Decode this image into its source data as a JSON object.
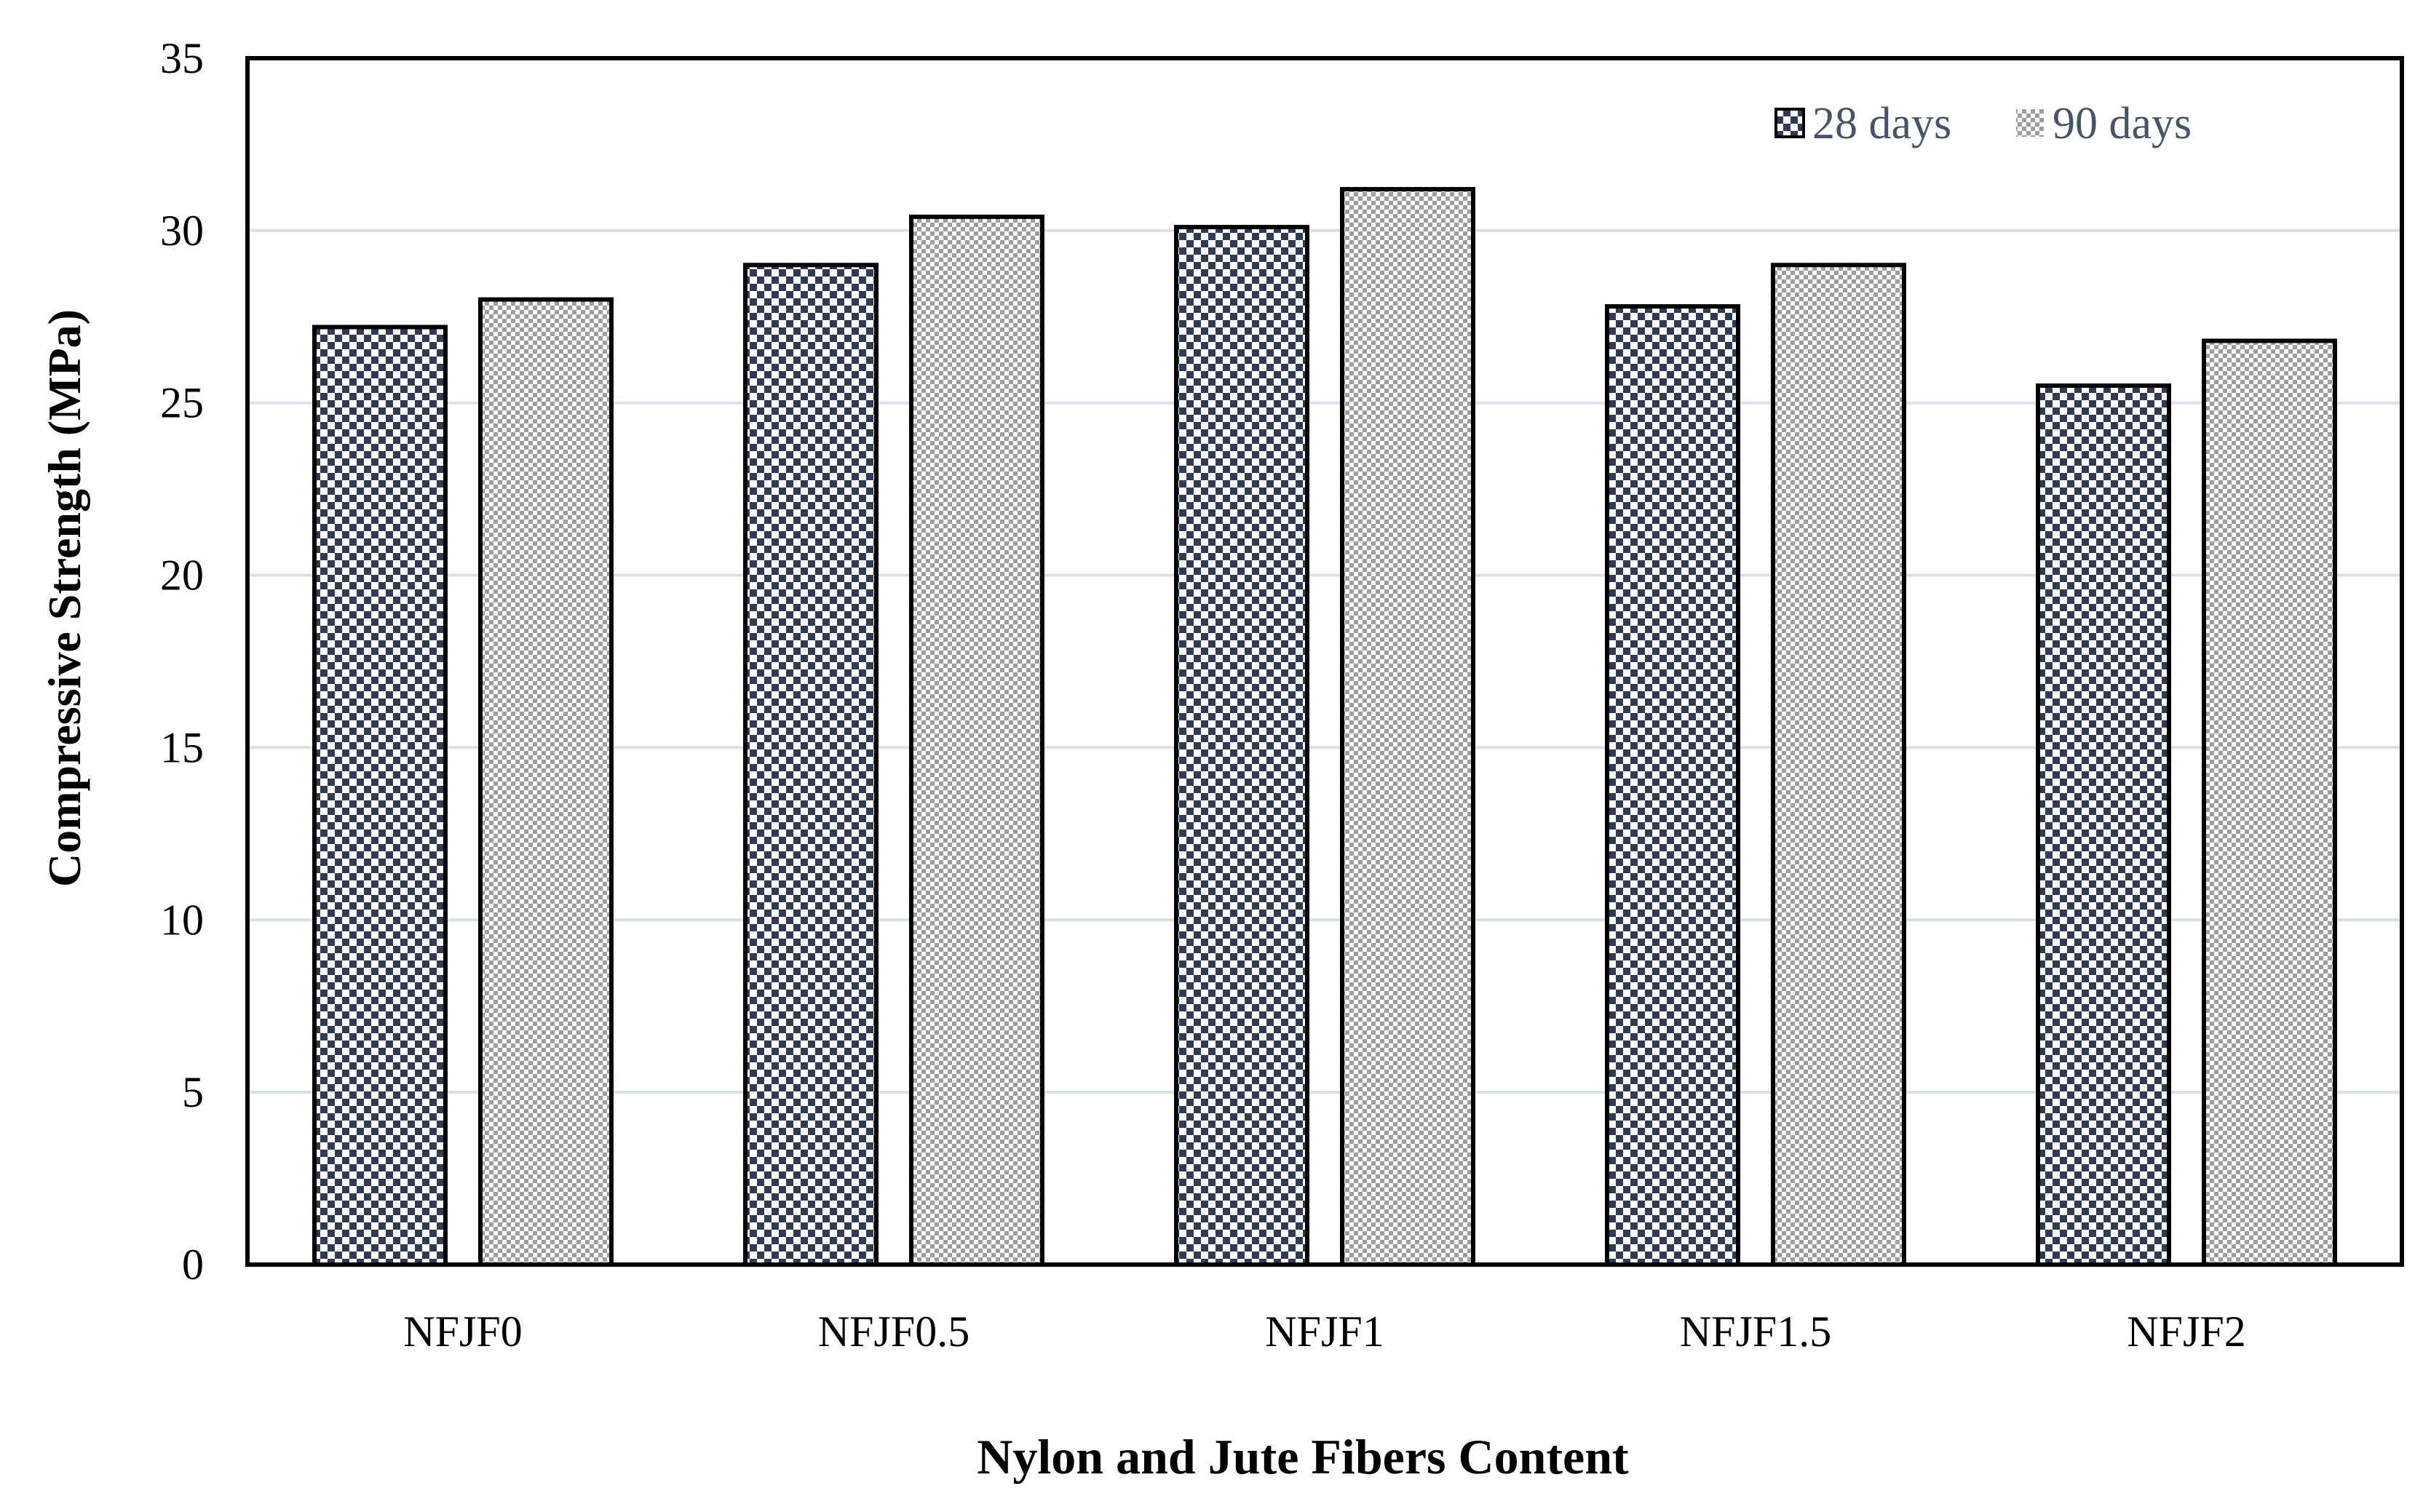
{
  "chart_data": {
    "type": "bar",
    "title": "",
    "xlabel": "Nylon and Jute Fibers Content",
    "ylabel": "Compressive Strength (MPa)",
    "categories": [
      "NFJF0",
      "NFJF0.5",
      "NFJF1",
      "NFJF1.5",
      "NFJF2"
    ],
    "series": [
      {
        "name": "28 days",
        "values": [
          27.2,
          29.0,
          30.1,
          27.8,
          25.5
        ],
        "pattern": "dark-checker",
        "color": "#2f3b55"
      },
      {
        "name": "90 days",
        "values": [
          28.0,
          30.4,
          31.2,
          29.0,
          26.8
        ],
        "pattern": "light-checker",
        "color": "#9e9e9e"
      }
    ],
    "ylim": [
      0,
      35
    ],
    "yticks": [
      0,
      5,
      10,
      15,
      20,
      25,
      30,
      35
    ],
    "grid": true,
    "legend_position": "top-right"
  },
  "colors": {
    "gridline": "#d9e0e8",
    "axis": "#000000",
    "legend_text": "#44546a",
    "bar_outline": "#000000"
  }
}
